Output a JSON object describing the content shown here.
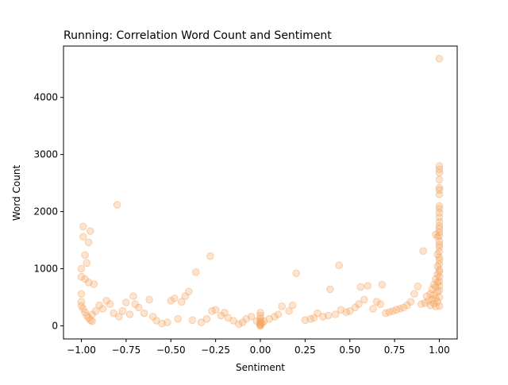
{
  "chart_data": {
    "type": "scatter",
    "title": "Running: Correlation Word Count and Sentiment",
    "xlabel": "Sentiment",
    "ylabel": "Word Count",
    "xlim": [
      -1.1,
      1.1
    ],
    "ylim": [
      -230,
      4900
    ],
    "xticks": [
      -1.0,
      -0.75,
      -0.5,
      -0.25,
      0.0,
      0.25,
      0.5,
      0.75,
      1.0
    ],
    "xtick_labels": [
      "−1.00",
      "−0.75",
      "−0.50",
      "−0.25",
      "0.00",
      "0.25",
      "0.50",
      "0.75",
      "1.00"
    ],
    "yticks": [
      0,
      1000,
      2000,
      3000,
      4000
    ],
    "ytick_labels": [
      "0",
      "1000",
      "2000",
      "3000",
      "4000"
    ],
    "grid": false,
    "point_color": "#f4a460",
    "point_alpha": 0.3,
    "points": [
      [
        1.0,
        4680
      ],
      [
        1.0,
        2800
      ],
      [
        1.0,
        2740
      ],
      [
        1.0,
        2680
      ],
      [
        1.0,
        2560
      ],
      [
        1.0,
        2420
      ],
      [
        1.0,
        2380
      ],
      [
        1.0,
        2300
      ],
      [
        1.0,
        2100
      ],
      [
        1.0,
        2050
      ],
      [
        1.0,
        1980
      ],
      [
        1.0,
        1900
      ],
      [
        1.0,
        1820
      ],
      [
        1.0,
        1750
      ],
      [
        1.0,
        1700
      ],
      [
        1.0,
        1640
      ],
      [
        1.0,
        1580
      ],
      [
        0.99,
        1560
      ],
      [
        0.98,
        1600
      ],
      [
        1.0,
        1480
      ],
      [
        1.0,
        1420
      ],
      [
        1.0,
        1380
      ],
      [
        1.0,
        1300
      ],
      [
        0.99,
        1250
      ],
      [
        0.91,
        1310
      ],
      [
        1.0,
        1200
      ],
      [
        1.0,
        1150
      ],
      [
        1.0,
        1080
      ],
      [
        0.99,
        1040
      ],
      [
        1.0,
        980
      ],
      [
        1.0,
        940
      ],
      [
        0.99,
        900
      ],
      [
        1.0,
        860
      ],
      [
        0.98,
        820
      ],
      [
        1.0,
        780
      ],
      [
        0.99,
        760
      ],
      [
        0.97,
        720
      ],
      [
        1.0,
        700
      ],
      [
        0.98,
        680
      ],
      [
        0.96,
        640
      ],
      [
        1.0,
        620
      ],
      [
        0.99,
        600
      ],
      [
        0.95,
        560
      ],
      [
        0.97,
        540
      ],
      [
        0.93,
        520
      ],
      [
        1.0,
        500
      ],
      [
        0.98,
        480
      ],
      [
        0.96,
        460
      ],
      [
        0.94,
        440
      ],
      [
        0.99,
        420
      ],
      [
        0.92,
        400
      ],
      [
        0.97,
        390
      ],
      [
        0.9,
        380
      ],
      [
        0.95,
        360
      ],
      [
        1.0,
        350
      ],
      [
        0.98,
        340
      ],
      [
        0.88,
        690
      ],
      [
        0.86,
        560
      ],
      [
        0.84,
        420
      ],
      [
        0.82,
        360
      ],
      [
        0.8,
        320
      ],
      [
        0.78,
        300
      ],
      [
        0.76,
        280
      ],
      [
        0.74,
        260
      ],
      [
        0.72,
        240
      ],
      [
        0.7,
        220
      ],
      [
        0.68,
        720
      ],
      [
        0.67,
        380
      ],
      [
        0.65,
        420
      ],
      [
        0.63,
        300
      ],
      [
        0.6,
        700
      ],
      [
        0.58,
        460
      ],
      [
        0.56,
        680
      ],
      [
        0.55,
        380
      ],
      [
        0.53,
        320
      ],
      [
        0.5,
        260
      ],
      [
        0.48,
        240
      ],
      [
        0.45,
        280
      ],
      [
        0.44,
        1060
      ],
      [
        0.42,
        200
      ],
      [
        0.39,
        640
      ],
      [
        0.38,
        180
      ],
      [
        0.35,
        160
      ],
      [
        0.32,
        220
      ],
      [
        0.3,
        140
      ],
      [
        0.28,
        120
      ],
      [
        0.25,
        100
      ],
      [
        0.2,
        920
      ],
      [
        0.18,
        360
      ],
      [
        0.16,
        260
      ],
      [
        0.12,
        340
      ],
      [
        0.1,
        200
      ],
      [
        0.08,
        160
      ],
      [
        0.05,
        120
      ],
      [
        0.02,
        80
      ],
      [
        0.0,
        230
      ],
      [
        0.0,
        180
      ],
      [
        0.0,
        130
      ],
      [
        0.0,
        90
      ],
      [
        0.0,
        60
      ],
      [
        0.0,
        40
      ],
      [
        0.0,
        20
      ],
      [
        0.0,
        10
      ],
      [
        0.0,
        0
      ],
      [
        0.01,
        50
      ],
      [
        -0.02,
        80
      ],
      [
        -0.05,
        160
      ],
      [
        -0.08,
        120
      ],
      [
        -0.1,
        60
      ],
      [
        -0.12,
        30
      ],
      [
        -0.15,
        90
      ],
      [
        -0.18,
        140
      ],
      [
        -0.2,
        230
      ],
      [
        -0.22,
        180
      ],
      [
        -0.25,
        280
      ],
      [
        -0.27,
        260
      ],
      [
        -0.28,
        1220
      ],
      [
        -0.3,
        120
      ],
      [
        -0.33,
        60
      ],
      [
        -0.36,
        940
      ],
      [
        -0.38,
        100
      ],
      [
        -0.4,
        600
      ],
      [
        -0.42,
        520
      ],
      [
        -0.44,
        420
      ],
      [
        -0.46,
        120
      ],
      [
        -0.48,
        480
      ],
      [
        -0.5,
        440
      ],
      [
        -0.52,
        60
      ],
      [
        -0.55,
        40
      ],
      [
        -0.58,
        90
      ],
      [
        -0.6,
        160
      ],
      [
        -0.62,
        460
      ],
      [
        -0.65,
        220
      ],
      [
        -0.68,
        320
      ],
      [
        -0.7,
        380
      ],
      [
        -0.71,
        520
      ],
      [
        -0.73,
        200
      ],
      [
        -0.75,
        410
      ],
      [
        -0.77,
        260
      ],
      [
        -0.79,
        160
      ],
      [
        -0.8,
        2120
      ],
      [
        -0.82,
        220
      ],
      [
        -0.84,
        380
      ],
      [
        -0.86,
        440
      ],
      [
        -0.88,
        300
      ],
      [
        -0.9,
        360
      ],
      [
        -0.92,
        260
      ],
      [
        -0.93,
        730
      ],
      [
        -0.94,
        200
      ],
      [
        -0.95,
        1660
      ],
      [
        -0.96,
        1460
      ],
      [
        -0.96,
        760
      ],
      [
        -0.97,
        1100
      ],
      [
        -0.98,
        1240
      ],
      [
        -0.98,
        820
      ],
      [
        -0.99,
        1740
      ],
      [
        -0.99,
        1560
      ],
      [
        -1.0,
        1000
      ],
      [
        -1.0,
        860
      ],
      [
        -1.0,
        560
      ],
      [
        -1.0,
        420
      ],
      [
        -1.0,
        350
      ],
      [
        -0.99,
        300
      ],
      [
        -0.98,
        240
      ],
      [
        -0.97,
        180
      ],
      [
        -0.96,
        140
      ],
      [
        -0.95,
        100
      ],
      [
        -0.94,
        80
      ]
    ]
  }
}
